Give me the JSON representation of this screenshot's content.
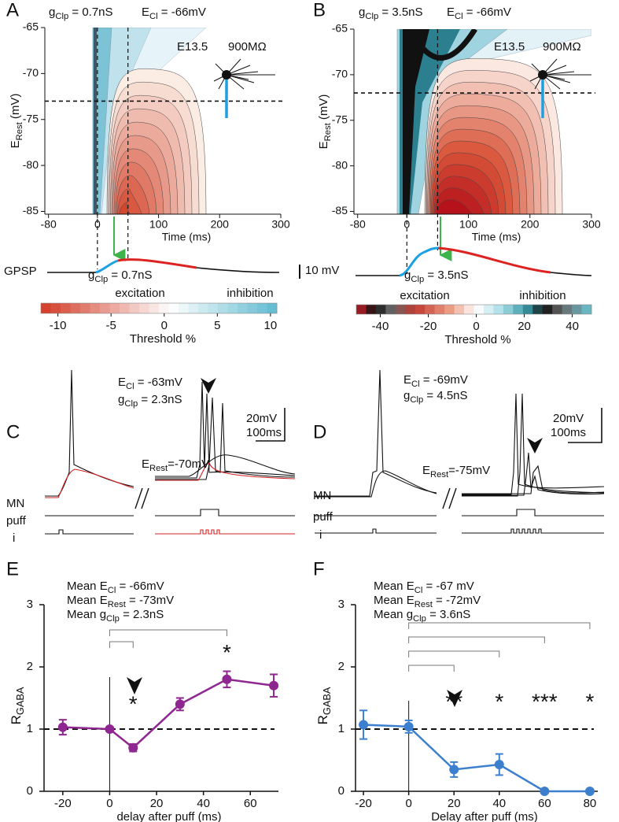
{
  "panel_labels": [
    "A",
    "B",
    "C",
    "D",
    "E",
    "F"
  ],
  "chart_data": [
    {
      "type": "contour",
      "g_label": [
        "g",
        "Clp",
        " = 0.7nS"
      ],
      "e_label": [
        "E",
        "Cl",
        " = -66mV"
      ],
      "age": "E13.5",
      "resistance": "900MΩ",
      "xlabel": "Time (ms)",
      "ylabel": [
        "E",
        "Rest",
        " (mV)"
      ],
      "xlim": [
        -86,
        300
      ],
      "ylim": [
        -85.3,
        -65
      ],
      "xticks": [
        -80,
        0,
        100,
        200,
        300
      ],
      "yticks": [
        -85,
        -80,
        -75,
        -70,
        -65
      ],
      "hline": -73,
      "vlines": [
        0,
        50
      ],
      "trace": {
        "label": "GPSP",
        "scale": "10 mV",
        "g_label": [
          "g",
          "Clp",
          " = 0.7nS"
        ]
      },
      "colorbar": {
        "left_label": "excitation",
        "right_label": "inhibition",
        "label": "Threshold %",
        "xlim": [
          -11.6,
          10.6
        ],
        "xticks": [
          -10,
          -5,
          0,
          5,
          10
        ]
      }
    },
    {
      "type": "contour",
      "g_label": [
        "g",
        "Clp",
        " = 3.5nS"
      ],
      "e_label": [
        "E",
        "Cl",
        " = -66mV"
      ],
      "age": "E13.5",
      "resistance": "900MΩ",
      "xlabel": "Time (ms)",
      "ylabel": [
        "E",
        "Rest",
        " (mV)"
      ],
      "xlim": [
        -86,
        300
      ],
      "ylim": [
        -85.3,
        -65
      ],
      "xticks": [
        -80,
        0,
        100,
        200,
        300
      ],
      "yticks": [
        -85,
        -80,
        -75,
        -70,
        -65
      ],
      "hline": -72,
      "vlines": [
        0,
        50
      ],
      "trace": {
        "g_label": [
          "g",
          "Clp",
          " = 3.5nS"
        ]
      },
      "colorbar": {
        "left_label": "excitation",
        "right_label": "inhibition",
        "label": "Threshold %",
        "xlim": [
          -50,
          48
        ],
        "xticks": [
          -40,
          -20,
          0,
          20,
          40
        ]
      }
    },
    {
      "type": "line",
      "title_lines": [
        [
          "Mean E",
          "Cl",
          " = -66mV"
        ],
        [
          "Mean E",
          "Rest",
          " = -73mV"
        ],
        [
          "Mean g",
          "Clp",
          " = 2.3nS"
        ]
      ],
      "ylabel": [
        "R",
        "GABA"
      ],
      "xlabel": "delay after puff (ms)",
      "color": "#8e278f",
      "x": [
        -20,
        0,
        10,
        30,
        50,
        70
      ],
      "values": [
        1.03,
        1.0,
        0.7,
        1.4,
        1.8,
        1.7
      ],
      "errors": [
        0.12,
        0.03,
        0.06,
        0.1,
        0.13,
        0.18
      ],
      "xlim": [
        -28,
        72
      ],
      "ylim": [
        0,
        3
      ],
      "xticks": [
        -20,
        0,
        20,
        40,
        60
      ],
      "yticks": [
        0,
        1,
        2,
        3
      ],
      "reference_line": 1,
      "vline": 0,
      "comparisons": [
        [
          0,
          10
        ],
        [
          0,
          50
        ]
      ],
      "annotations": [
        {
          "x": 10,
          "text": "*"
        },
        {
          "x": 50,
          "text": "*"
        }
      ]
    },
    {
      "type": "line",
      "title_lines": [
        [
          "Mean E",
          "Cl",
          " = -67 mV"
        ],
        [
          "Mean E",
          "Rest",
          " = -72mV"
        ],
        [
          "Mean g",
          "Clp",
          " = 3.6nS"
        ]
      ],
      "ylabel": [
        "R",
        "GABA"
      ],
      "xlabel": "Delay after puff (ms)",
      "color": "#3c7fcf",
      "x": [
        -20,
        0,
        20,
        40,
        60,
        80
      ],
      "values": [
        1.07,
        1.04,
        0.35,
        0.43,
        0,
        0
      ],
      "errors": [
        0.23,
        0.1,
        0.12,
        0.17,
        0,
        0
      ],
      "xlim": [
        -23.5,
        83.5
      ],
      "ylim": [
        0,
        3
      ],
      "xticks": [
        -20,
        0,
        20,
        40,
        60,
        80
      ],
      "yticks": [
        0,
        1,
        2,
        3
      ],
      "reference_line": 1,
      "vline": 0,
      "comparisons": [
        [
          0,
          20
        ],
        [
          0,
          40
        ],
        [
          0,
          60
        ],
        [
          0,
          80
        ]
      ],
      "annotations": [
        {
          "x": 20,
          "text": "**"
        },
        {
          "x": 40,
          "text": "*"
        },
        {
          "x": 60,
          "text": "***"
        },
        {
          "x": 80,
          "text": "*"
        }
      ]
    }
  ],
  "recordings": [
    {
      "e_label": [
        "E",
        "Cl",
        " = -63mV"
      ],
      "g_label": [
        "g",
        "Clp",
        " = 2.3nS"
      ],
      "scale_v": "20mV",
      "scale_t": "100ms",
      "rest_label": [
        "E",
        "Rest",
        "=-70mV"
      ],
      "rows": [
        "MN",
        "puff",
        "i"
      ]
    },
    {
      "e_label": [
        "E",
        "Cl",
        " = -69mV"
      ],
      "g_label": [
        "g",
        "Clp",
        " = 4.5nS"
      ],
      "scale_v": "20mV",
      "scale_t": "100ms",
      "rest_label": [
        "E",
        "Rest",
        "=-75mV"
      ],
      "rows": [
        "MN",
        "puff",
        "i"
      ]
    }
  ]
}
